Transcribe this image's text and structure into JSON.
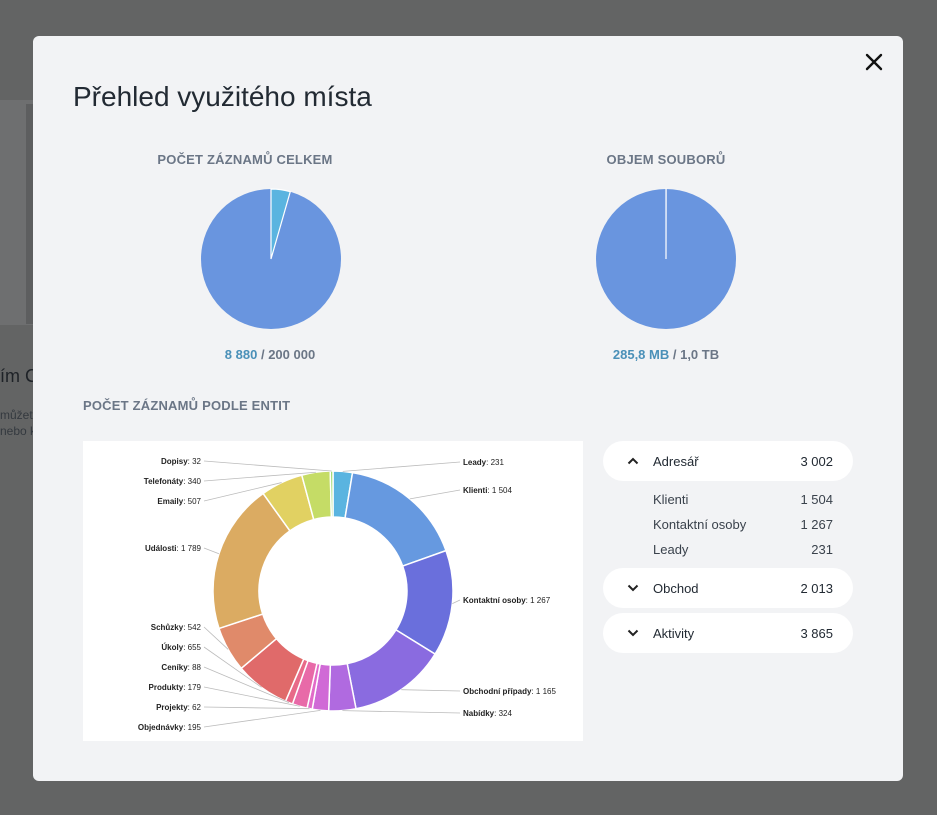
{
  "background": {
    "title_fragment": "ím C",
    "lines": [
      "můžet",
      "nebo k"
    ]
  },
  "modal": {
    "title": "Přehled využitého místa",
    "close_icon": "close-icon"
  },
  "records_total": {
    "title": "POČET ZÁZNAMŮ CELKEM",
    "used": "8 880",
    "separator": " / ",
    "limit": "200 000",
    "used_fraction": 0.0444
  },
  "file_volume": {
    "title": "OBJEM SOUBORŮ",
    "used": "285,8 MB",
    "separator": " / ",
    "limit": "1,0 TB",
    "used_fraction": 0.0003
  },
  "entities": {
    "title": "POČET ZÁZNAMŮ PODLE ENTIT"
  },
  "chart_data": {
    "type": "pie",
    "variant": "donut",
    "series": [
      {
        "label": "Leady",
        "value": 231,
        "value_text": "231",
        "color": "#5ab4e0"
      },
      {
        "label": "Klienti",
        "value": 1504,
        "value_text": "1 504",
        "color": "#6699e0"
      },
      {
        "label": "Kontaktní osoby",
        "value": 1267,
        "value_text": "1 267",
        "color": "#6a6fdc"
      },
      {
        "label": "Obchodní případy",
        "value": 1165,
        "value_text": "1 165",
        "color": "#8a6be0"
      },
      {
        "label": "Nabídky",
        "value": 324,
        "value_text": "324",
        "color": "#b06ae0"
      },
      {
        "label": "Objednávky",
        "value": 195,
        "value_text": "195",
        "color": "#d06ad6"
      },
      {
        "label": "Projekty",
        "value": 62,
        "value_text": "62",
        "color": "#e26bc8"
      },
      {
        "label": "Produkty",
        "value": 179,
        "value_text": "179",
        "color": "#e86aa8"
      },
      {
        "label": "Ceníky",
        "value": 88,
        "value_text": "88",
        "color": "#e86a88"
      },
      {
        "label": "Úkoly",
        "value": 655,
        "value_text": "655",
        "color": "#e06a6a"
      },
      {
        "label": "Schůzky",
        "value": 542,
        "value_text": "542",
        "color": "#e08a6a"
      },
      {
        "label": "Události",
        "value": 1789,
        "value_text": "1 789",
        "color": "#dbab62"
      },
      {
        "label": "Emaily",
        "value": 507,
        "value_text": "507",
        "color": "#e1d162"
      },
      {
        "label": "Telefonáty",
        "value": 340,
        "value_text": "340",
        "color": "#c5dc66"
      },
      {
        "label": "Dopisy",
        "value": 32,
        "value_text": "32",
        "color": "#9bd86a"
      }
    ]
  },
  "legend": {
    "groups": [
      {
        "name": "Adresář",
        "value": "3 002",
        "expanded": true,
        "chevron_icon": "chevron-up-icon",
        "items": [
          {
            "name": "Klienti",
            "value": "1 504"
          },
          {
            "name": "Kontaktní osoby",
            "value": "1 267"
          },
          {
            "name": "Leady",
            "value": "231"
          }
        ]
      },
      {
        "name": "Obchod",
        "value": "2 013",
        "expanded": false,
        "chevron_icon": "chevron-down-icon",
        "items": []
      },
      {
        "name": "Aktivity",
        "value": "3 865",
        "expanded": false,
        "chevron_icon": "chevron-down-icon",
        "items": []
      }
    ]
  },
  "colors": {
    "pie": "#6995df",
    "pie_used": "#5ab4e0",
    "accent_text": "#4a90b8"
  }
}
